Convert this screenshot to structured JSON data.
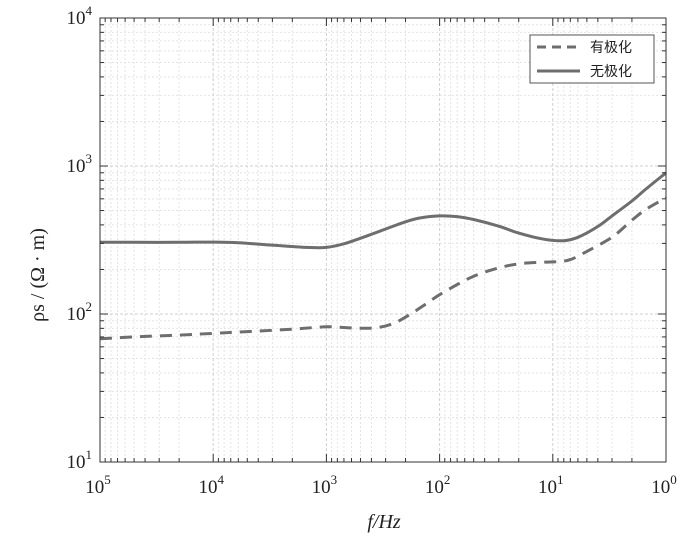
{
  "chart_data": {
    "type": "line",
    "xlabel": "f/Hz",
    "ylabel": "ρs / (Ω · m)",
    "x_scale": "log",
    "x_reversed": true,
    "y_scale": "log",
    "xlim": [
      100000,
      1
    ],
    "ylim": [
      10,
      10000
    ],
    "grid": true,
    "legend_position": "top-right",
    "x_ticks": [
      {
        "base": "10",
        "exp": "5",
        "value": 100000
      },
      {
        "base": "10",
        "exp": "4",
        "value": 10000
      },
      {
        "base": "10",
        "exp": "3",
        "value": 1000
      },
      {
        "base": "10",
        "exp": "2",
        "value": 100
      },
      {
        "base": "10",
        "exp": "1",
        "value": 10
      },
      {
        "base": "10",
        "exp": "0",
        "value": 1
      }
    ],
    "y_ticks": [
      {
        "base": "10",
        "exp": "1",
        "value": 10
      },
      {
        "base": "10",
        "exp": "2",
        "value": 100
      },
      {
        "base": "10",
        "exp": "3",
        "value": 1000
      },
      {
        "base": "10",
        "exp": "4",
        "value": 10000
      }
    ],
    "series": [
      {
        "name": "有极化",
        "style": "dashed",
        "color": "#6e6e6e",
        "points": [
          [
            100000,
            68
          ],
          [
            50000,
            70
          ],
          [
            20000,
            72
          ],
          [
            10000,
            74
          ],
          [
            5000,
            76
          ],
          [
            2000,
            79
          ],
          [
            1000,
            82
          ],
          [
            700,
            81
          ],
          [
            500,
            80
          ],
          [
            350,
            81
          ],
          [
            250,
            87
          ],
          [
            180,
            100
          ],
          [
            130,
            118
          ],
          [
            100,
            135
          ],
          [
            70,
            158
          ],
          [
            50,
            180
          ],
          [
            35,
            198
          ],
          [
            25,
            212
          ],
          [
            18,
            220
          ],
          [
            12,
            224
          ],
          [
            9,
            226
          ],
          [
            7,
            233
          ],
          [
            5,
            265
          ],
          [
            3,
            330
          ],
          [
            2,
            430
          ],
          [
            1.5,
            510
          ],
          [
            1,
            610
          ]
        ]
      },
      {
        "name": "无极化",
        "style": "solid",
        "color": "#6e6e6e",
        "points": [
          [
            100000,
            305
          ],
          [
            50000,
            305
          ],
          [
            20000,
            305
          ],
          [
            10000,
            306
          ],
          [
            6000,
            303
          ],
          [
            3000,
            292
          ],
          [
            1500,
            282
          ],
          [
            1000,
            282
          ],
          [
            700,
            298
          ],
          [
            500,
            325
          ],
          [
            300,
            375
          ],
          [
            200,
            420
          ],
          [
            150,
            445
          ],
          [
            100,
            460
          ],
          [
            70,
            455
          ],
          [
            50,
            435
          ],
          [
            30,
            392
          ],
          [
            20,
            352
          ],
          [
            12,
            320
          ],
          [
            8,
            313
          ],
          [
            6,
            330
          ],
          [
            4,
            390
          ],
          [
            3,
            460
          ],
          [
            2,
            580
          ],
          [
            1.5,
            700
          ],
          [
            1,
            900
          ]
        ]
      }
    ]
  }
}
